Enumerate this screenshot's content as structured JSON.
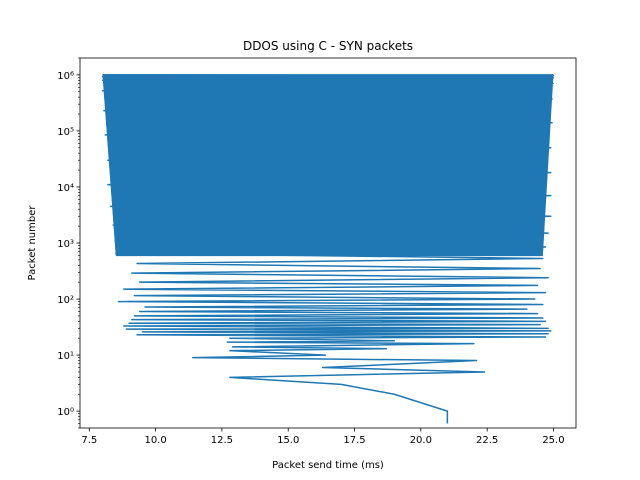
{
  "chart_data": {
    "type": "line",
    "title": "DDOS using C - SYN packets",
    "xlabel": "Packet send time (ms)",
    "ylabel": "Packet number",
    "xlim": [
      7.15,
      25.85
    ],
    "ylim": [
      0.5,
      2000000
    ],
    "yscale": "log",
    "grid": false,
    "x_ticks": [
      7.5,
      10.0,
      12.5,
      15.0,
      17.5,
      20.0,
      22.5,
      25.0
    ],
    "x_tick_labels": [
      "7.5",
      "10.0",
      "12.5",
      "15.0",
      "17.5",
      "20.0",
      "22.5",
      "25.0"
    ],
    "y_ticks": [
      1,
      10,
      100,
      1000,
      10000,
      100000,
      1000000
    ],
    "y_tick_labels": [
      "10⁰",
      "10¹",
      "10²",
      "10³",
      "10⁴",
      "10⁵",
      "10⁶"
    ],
    "series": [
      {
        "color": "#1f77b4",
        "x": [
          21.0,
          21.0,
          19.0,
          17.0,
          12.8,
          22.4,
          16.3,
          22.1,
          11.4,
          16.4,
          12.8,
          18.7,
          12.9,
          22.0,
          12.7,
          19.0,
          12.8,
          24.7,
          9.3,
          24.8,
          9.5,
          24.9,
          8.9,
          24.8,
          8.8,
          24.5,
          9.0,
          24.7,
          9.1,
          24.6,
          9.2,
          24.4,
          9.4,
          24.0,
          9.6,
          24.6,
          8.6,
          24.3,
          9.2,
          24.7,
          8.8,
          24.4,
          9.4,
          24.8,
          9.1,
          24.5,
          9.3,
          24.6,
          8.5,
          24.7,
          8.6,
          24.8,
          8.4,
          24.9,
          8.3,
          24.9,
          8.2,
          24.9,
          8.2,
          24.9,
          8.1,
          24.95,
          8.05,
          24.95,
          8.0,
          24.98,
          8.0,
          25.0,
          8.0,
          25.0,
          8.0
        ],
        "y": [
          0.6,
          1,
          2,
          3,
          4,
          5,
          6,
          8,
          9,
          10,
          12,
          13,
          14,
          16,
          17,
          18,
          20,
          21,
          23,
          24,
          26,
          27,
          29,
          30,
          33,
          35,
          37,
          40,
          43,
          46,
          50,
          55,
          60,
          66,
          72,
          80,
          90,
          100,
          115,
          130,
          150,
          175,
          200,
          240,
          290,
          350,
          430,
          530,
          660,
          850,
          1100,
          1500,
          2100,
          3000,
          4500,
          7000,
          11000,
          18000,
          30000,
          50000,
          85000,
          140000,
          230000,
          370000,
          520000,
          700000,
          800000,
          880000,
          930000,
          970000,
          1000000
        ]
      }
    ]
  }
}
